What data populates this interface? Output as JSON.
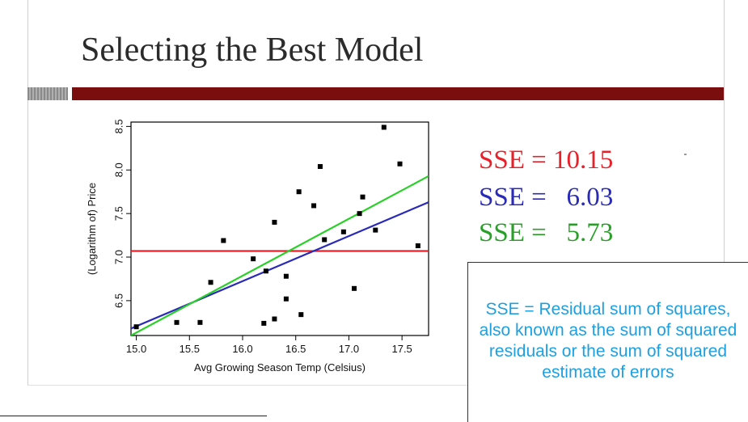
{
  "slide": {
    "title": "Selecting the Best Model"
  },
  "sse_labels": [
    {
      "text": "SSE = 10.15",
      "color": "#e8202a"
    },
    {
      "text": "SSE =   6.03",
      "color": "#2a2ab8"
    },
    {
      "text": "SSE =   5.73",
      "color": "#28a028"
    }
  ],
  "note": {
    "text": "SSE = Residual sum of squares, also known as the sum of squared residuals or the sum of squared estimate of errors",
    "color": "#1ea0e0"
  },
  "chart_data": {
    "type": "scatter",
    "xlabel": "Avg Growing Season Temp (Celsius)",
    "ylabel": "(Logarithm of) Price",
    "xlim": [
      14.95,
      17.75
    ],
    "ylim": [
      6.1,
      8.55
    ],
    "xticks": [
      "15.0",
      "15.5",
      "16.0",
      "16.5",
      "17.0",
      "17.5"
    ],
    "xtick_values": [
      15.0,
      15.5,
      16.0,
      16.5,
      17.0,
      17.5
    ],
    "yticks": [
      "6.5",
      "7.0",
      "7.5",
      "8.0",
      "8.5"
    ],
    "ytick_values": [
      6.5,
      7.0,
      7.5,
      8.0,
      8.5
    ],
    "grid": false,
    "points": [
      [
        15.0,
        6.2
      ],
      [
        15.38,
        6.25
      ],
      [
        15.6,
        6.25
      ],
      [
        15.7,
        6.71
      ],
      [
        15.82,
        7.19
      ],
      [
        16.1,
        6.98
      ],
      [
        16.2,
        6.24
      ],
      [
        16.22,
        6.84
      ],
      [
        16.3,
        6.29
      ],
      [
        16.3,
        7.4
      ],
      [
        16.41,
        6.52
      ],
      [
        16.41,
        6.78
      ],
      [
        16.53,
        7.75
      ],
      [
        16.55,
        6.34
      ],
      [
        16.67,
        7.59
      ],
      [
        16.73,
        8.04
      ],
      [
        16.77,
        7.2
      ],
      [
        16.95,
        7.29
      ],
      [
        17.05,
        6.64
      ],
      [
        17.1,
        7.5
      ],
      [
        17.13,
        7.69
      ],
      [
        17.25,
        7.31
      ],
      [
        17.33,
        8.49
      ],
      [
        17.48,
        8.07
      ],
      [
        17.65,
        7.13
      ]
    ],
    "lines": [
      {
        "color": "#e8202a",
        "x": [
          14.95,
          17.75
        ],
        "y": [
          7.07,
          7.07
        ]
      },
      {
        "color": "#2a2ab8",
        "x": [
          14.95,
          17.75
        ],
        "y": [
          6.18,
          7.63
        ]
      },
      {
        "color": "#28d028",
        "x": [
          14.95,
          17.75
        ],
        "y": [
          6.1,
          7.93
        ]
      }
    ]
  }
}
